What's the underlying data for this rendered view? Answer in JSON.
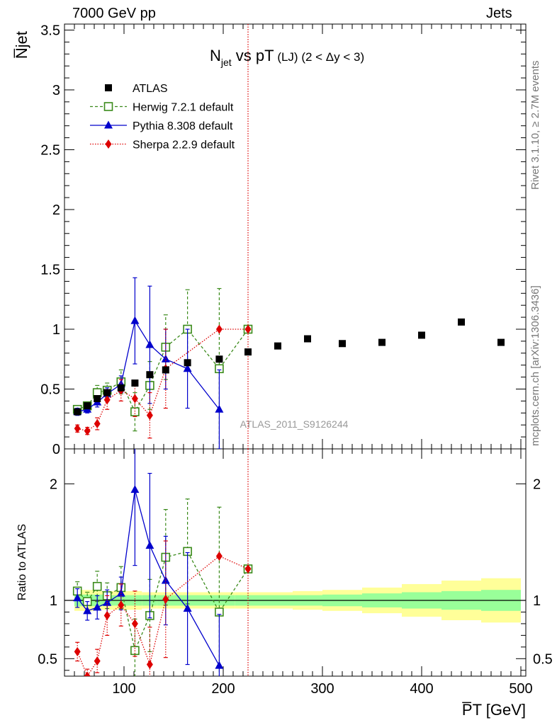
{
  "header": {
    "left": "7000 GeV pp",
    "right": "Jets"
  },
  "side_labels": {
    "rivet": "Rivet 3.1.10, ≥ 2.7M events",
    "mcplots": "mcplots.cern.ch [arXiv:1306.3436]"
  },
  "chart_data": [
    {
      "type": "scatter",
      "panel": "main",
      "title_parts": {
        "main": "N",
        "sub": "jet",
        "mid": " vs pT",
        "paren": " (LJ) (2 < Δy < 3)"
      },
      "ylabel": "N̅jet",
      "watermark": "ATLAS_2011_S9126244",
      "xlim": [
        40,
        505
      ],
      "ylim": [
        0,
        3.55
      ],
      "yticks": [
        0,
        0.5,
        1,
        1.5,
        2,
        2.5,
        3,
        3.5
      ],
      "ytick_labels": [
        "0",
        "0.5",
        "1",
        "1.5",
        "2",
        "2.5",
        "3",
        "3.5"
      ],
      "vline_x": 225,
      "legend_position": "top-left",
      "series": [
        {
          "name": "ATLAS",
          "color": "#000000",
          "style": "data",
          "x": [
            53,
            63,
            73,
            83,
            97,
            111,
            126,
            142,
            164,
            196,
            225,
            255,
            285,
            320,
            360,
            400,
            440,
            480
          ],
          "y": [
            0.31,
            0.36,
            0.42,
            0.47,
            0.51,
            0.55,
            0.62,
            0.66,
            0.72,
            0.75,
            0.81,
            0.86,
            0.92,
            0.88,
            0.89,
            0.95,
            1.06,
            0.89
          ]
        },
        {
          "name": "Herwig 7.2.1 default",
          "color": "#3a8a1a",
          "style": "herwig",
          "x": [
            53,
            63,
            73,
            83,
            97,
            111,
            126,
            142,
            164,
            196,
            225
          ],
          "y": [
            0.33,
            0.36,
            0.47,
            0.49,
            0.56,
            0.31,
            0.53,
            0.85,
            1.0,
            0.67,
            1.0
          ],
          "err": [
            0.03,
            0.03,
            0.06,
            0.06,
            0.1,
            0.16,
            0.2,
            0.27,
            0.33,
            0.67,
            0.0
          ]
        },
        {
          "name": "Pythia 8.308 default",
          "color": "#0000cc",
          "style": "pythia",
          "x": [
            53,
            63,
            73,
            83,
            97,
            111,
            126,
            142,
            164,
            196
          ],
          "y": [
            0.31,
            0.33,
            0.39,
            0.46,
            0.54,
            1.07,
            0.87,
            0.75,
            0.67,
            0.33
          ],
          "err": [
            0.03,
            0.03,
            0.04,
            0.05,
            0.07,
            0.36,
            0.49,
            0.25,
            0.33,
            0.33
          ]
        },
        {
          "name": "Sherpa 2.2.9 default",
          "color": "#dd0000",
          "style": "sherpa",
          "x": [
            53,
            63,
            73,
            83,
            97,
            111,
            126,
            142,
            196,
            225
          ],
          "y": [
            0.17,
            0.15,
            0.21,
            0.41,
            0.49,
            0.42,
            0.28,
            0.67,
            1.0,
            1.0
          ],
          "err": [
            0.03,
            0.03,
            0.05,
            0.08,
            0.09,
            0.15,
            0.19,
            0.33,
            0.0,
            0.0
          ]
        }
      ]
    },
    {
      "type": "scatter",
      "panel": "ratio",
      "ylabel": "Ratio to ATLAS",
      "xlabel": "P̅T [GeV]",
      "xlim": [
        40,
        505
      ],
      "ylim": [
        0.35,
        2.3
      ],
      "xticks": [
        100,
        200,
        300,
        400,
        500
      ],
      "xtick_labels": [
        "100",
        "200",
        "300",
        "400",
        "500"
      ],
      "yticks": [
        0.5,
        1,
        2
      ],
      "ytick_labels": [
        "0.5",
        "1",
        "2"
      ],
      "bands": {
        "edges": [
          50,
          60,
          70,
          80,
          90,
          105,
          118,
          133,
          150,
          180,
          212,
          240,
          270,
          300,
          340,
          380,
          420,
          460,
          500
        ],
        "yellow_half": [
          0.09,
          0.09,
          0.08,
          0.08,
          0.08,
          0.08,
          0.07,
          0.07,
          0.07,
          0.07,
          0.07,
          0.07,
          0.08,
          0.09,
          0.11,
          0.14,
          0.17,
          0.19,
          0.27
        ],
        "green_half": [
          0.05,
          0.05,
          0.05,
          0.045,
          0.045,
          0.045,
          0.045,
          0.045,
          0.045,
          0.045,
          0.045,
          0.045,
          0.045,
          0.05,
          0.06,
          0.07,
          0.08,
          0.09,
          0.12
        ],
        "yellow_color": "#ffff99",
        "green_color": "#99ff99"
      },
      "series": [
        {
          "name": "Herwig 7.2.1 default",
          "color": "#3a8a1a",
          "style": "herwig",
          "x": [
            53,
            63,
            73,
            83,
            97,
            111,
            126,
            142,
            164,
            196,
            225
          ],
          "y": [
            1.08,
            0.99,
            1.12,
            1.04,
            1.11,
            0.57,
            0.87,
            1.37,
            1.42,
            0.9,
            1.27
          ],
          "err": [
            0.08,
            0.08,
            0.13,
            0.11,
            0.18,
            0.27,
            0.31,
            0.41,
            0.45,
            0.9,
            0.0
          ]
        },
        {
          "name": "Pythia 8.308 default",
          "color": "#0000cc",
          "style": "pythia",
          "x": [
            53,
            63,
            73,
            83,
            97,
            111,
            126,
            142,
            164,
            196
          ],
          "y": [
            1.02,
            0.91,
            0.94,
            0.98,
            1.06,
            1.95,
            1.47,
            1.17,
            0.93,
            0.44
          ],
          "err": [
            0.08,
            0.08,
            0.1,
            0.11,
            0.14,
            0.65,
            0.62,
            0.38,
            0.48,
            0.44
          ]
        },
        {
          "name": "Sherpa 2.2.9 default",
          "color": "#dd0000",
          "style": "sherpa",
          "x": [
            53,
            63,
            73,
            83,
            97,
            111,
            126,
            142,
            196,
            225
          ],
          "y": [
            0.56,
            0.35,
            0.48,
            0.87,
            0.96,
            0.8,
            0.45,
            1.01,
            1.38,
            1.27
          ],
          "err": [
            0.08,
            0.06,
            0.1,
            0.17,
            0.18,
            0.28,
            0.32,
            0.5,
            0.0,
            0.0
          ]
        }
      ]
    }
  ]
}
